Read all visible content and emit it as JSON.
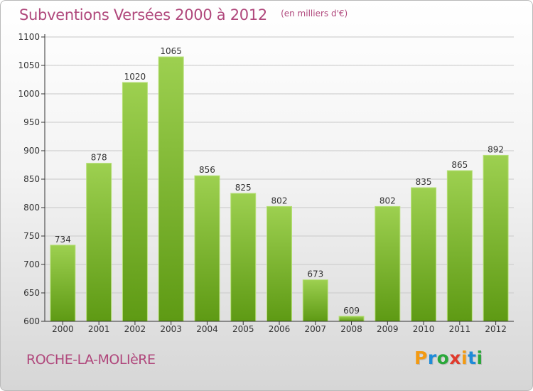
{
  "header": {
    "title": "Subventions Versées 2000 à 2012",
    "subtitle": "(en milliers d'€)"
  },
  "footer": {
    "place": "ROCHE-LA-MOLIèRE",
    "logo_text": "Proxiti",
    "logo_colors": [
      "#f39a12",
      "#1e8bd8",
      "#2aa83a",
      "#e03a2c",
      "#f39a12",
      "#1e8bd8",
      "#2aa83a"
    ]
  },
  "colors": {
    "title": "#b0487c",
    "bar_top": "#9dd050",
    "bar_bottom": "#5e9a14",
    "grid": "#c8c8c8",
    "axis": "#333333"
  },
  "chart_data": {
    "type": "bar",
    "categories": [
      "2000",
      "2001",
      "2002",
      "2003",
      "2004",
      "2005",
      "2006",
      "2007",
      "2008",
      "2009",
      "2010",
      "2011",
      "2012"
    ],
    "values": [
      734,
      878,
      1020,
      1065,
      856,
      825,
      802,
      673,
      609,
      802,
      835,
      865,
      892
    ],
    "value_labels": [
      "734",
      "878",
      "1020",
      "1065",
      "856",
      "825",
      "802",
      "673",
      "609",
      "802",
      "835",
      "865",
      "892"
    ],
    "ylim": [
      600,
      1100
    ],
    "yticks": [
      600,
      650,
      700,
      750,
      800,
      850,
      900,
      950,
      1000,
      1050,
      1100
    ],
    "ytick_labels": [
      "600",
      "650",
      "700",
      "750",
      "800",
      "850",
      "900",
      "950",
      "1000",
      "1050",
      "1100"
    ],
    "grid": true,
    "xlabel": "",
    "ylabel": ""
  }
}
